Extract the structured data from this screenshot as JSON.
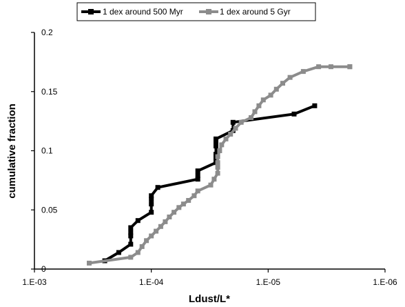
{
  "chart_data": {
    "type": "line",
    "xlabel": "Ldust/L*",
    "ylabel": "cumulative fraction",
    "x_scale": "log, reversed",
    "xlim": [
      0.001,
      1e-06
    ],
    "ylim": [
      0,
      0.2
    ],
    "x_tick_labels": [
      "1.E-03",
      "1.E-04",
      "1.E-05",
      "1.E-06"
    ],
    "x_tick_values": [
      0.001,
      0.0001,
      1e-05,
      1e-06
    ],
    "y_tick_labels": [
      "0",
      "0.05",
      "0.1",
      "0.15",
      "0.2"
    ],
    "y_tick_values": [
      0,
      0.05,
      0.1,
      0.15,
      0.2
    ],
    "grid": false,
    "legend_position": "top",
    "series": [
      {
        "name": "1 dex around 500 Myr",
        "color": "#000000",
        "x": [
          0.00025,
          0.00019,
          0.00015,
          0.00015,
          0.00015,
          0.00015,
          0.00013,
          0.0001,
          0.0001,
          0.0001,
          0.0001,
          8.8e-05,
          4e-05,
          4e-05,
          4e-05,
          2.8e-05,
          2.8e-05,
          2.8e-05,
          2.8e-05,
          2.8e-05,
          2.8e-05,
          2e-05,
          2e-05,
          6e-06,
          4e-06
        ],
        "y": [
          0.007,
          0.014,
          0.021,
          0.028,
          0.031,
          0.035,
          0.041,
          0.048,
          0.055,
          0.059,
          0.062,
          0.069,
          0.076,
          0.079,
          0.083,
          0.09,
          0.094,
          0.097,
          0.104,
          0.107,
          0.11,
          0.117,
          0.124,
          0.131,
          0.138
        ]
      },
      {
        "name": "1 dex around 5 Gyr",
        "color": "#8c8c8c",
        "x": [
          0.00034,
          0.00015,
          0.00013,
          0.00012,
          0.00011,
          0.0001,
          9.1e-05,
          8.3e-05,
          7.6e-05,
          7e-05,
          6.4e-05,
          5.8e-05,
          5.3e-05,
          4.8e-05,
          4.3e-05,
          4e-05,
          3.1e-05,
          2.9e-05,
          2.7e-05,
          2.7e-05,
          2.7e-05,
          2.7e-05,
          2.6e-05,
          2.5e-05,
          2.3e-05,
          2.1e-05,
          1.9e-05,
          1.7e-05,
          1.4e-05,
          1.3e-05,
          1.2e-05,
          1.1e-05,
          9.5e-06,
          8.5e-06,
          7.5e-06,
          6.5e-06,
          5e-06,
          3.7e-06,
          2.9e-06,
          2e-06,
          2e-06
        ],
        "y": [
          0.005,
          0.01,
          0.014,
          0.019,
          0.024,
          0.028,
          0.032,
          0.036,
          0.04,
          0.044,
          0.048,
          0.052,
          0.055,
          0.058,
          0.062,
          0.066,
          0.071,
          0.076,
          0.081,
          0.086,
          0.09,
          0.095,
          0.1,
          0.105,
          0.11,
          0.114,
          0.119,
          0.124,
          0.128,
          0.133,
          0.138,
          0.143,
          0.147,
          0.152,
          0.157,
          0.162,
          0.167,
          0.171,
          0.171,
          0.171,
          0.171
        ]
      }
    ]
  }
}
